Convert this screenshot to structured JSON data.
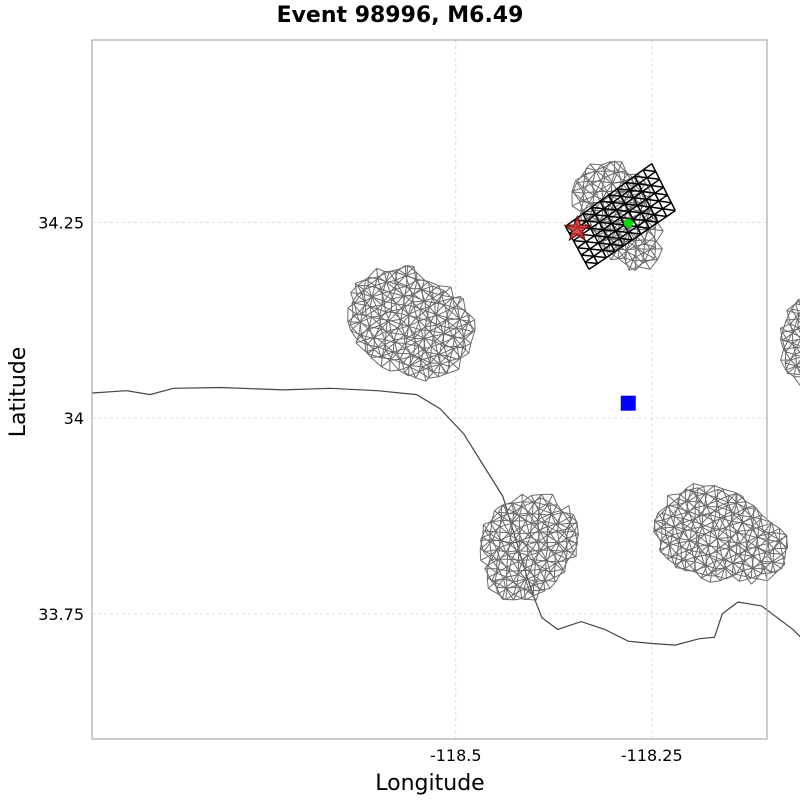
{
  "chart_data": {
    "type": "map",
    "title": "Event 98996, M6.49",
    "xlabel": "Longitude",
    "ylabel": "Latitude",
    "xlim": [
      -118.964,
      -118.103
    ],
    "ylim": [
      33.59,
      34.483
    ],
    "x_ticks": [
      {
        "value": -118.5,
        "label": "-118.5"
      },
      {
        "value": -118.25,
        "label": "-118.25"
      },
      {
        "value": -118.0,
        "label": "-118"
      }
    ],
    "y_ticks": [
      {
        "value": 34.25,
        "label": "34.25"
      },
      {
        "value": 34.0,
        "label": "34"
      },
      {
        "value": 33.75,
        "label": "33.75"
      }
    ],
    "grid": true,
    "coastline": [
      [
        -118.964,
        34.032
      ],
      [
        -118.92,
        34.035
      ],
      [
        -118.89,
        34.03
      ],
      [
        -118.86,
        34.038
      ],
      [
        -118.8,
        34.039
      ],
      [
        -118.72,
        34.036
      ],
      [
        -118.66,
        34.038
      ],
      [
        -118.6,
        34.035
      ],
      [
        -118.55,
        34.03
      ],
      [
        -118.52,
        34.012
      ],
      [
        -118.49,
        33.98
      ],
      [
        -118.465,
        33.94
      ],
      [
        -118.44,
        33.9
      ],
      [
        -118.425,
        33.85
      ],
      [
        -118.41,
        33.8
      ],
      [
        -118.4,
        33.77
      ],
      [
        -118.39,
        33.745
      ],
      [
        -118.37,
        33.73
      ],
      [
        -118.34,
        33.74
      ],
      [
        -118.31,
        33.73
      ],
      [
        -118.28,
        33.715
      ],
      [
        -118.25,
        33.712
      ],
      [
        -118.22,
        33.71
      ],
      [
        -118.19,
        33.718
      ],
      [
        -118.17,
        33.72
      ],
      [
        -118.16,
        33.75
      ],
      [
        -118.14,
        33.765
      ],
      [
        -118.11,
        33.76
      ],
      [
        -118.07,
        33.73
      ],
      [
        -118.04,
        33.7
      ],
      [
        -118.0,
        33.66
      ],
      [
        -117.95,
        33.63
      ],
      [
        -117.91,
        33.605
      ],
      [
        -117.87,
        33.59
      ]
    ],
    "patches": [
      {
        "name": "patch-north",
        "center": [
          -118.28,
          34.24
        ],
        "radius": 0.075
      },
      {
        "name": "patch-west",
        "center": [
          -118.54,
          34.1
        ],
        "radius": 0.1
      },
      {
        "name": "patch-east",
        "center": [
          -118.03,
          34.08
        ],
        "radius": 0.085
      },
      {
        "name": "patch-southwest",
        "center": [
          -118.42,
          33.83
        ],
        "radius": 0.09
      },
      {
        "name": "patch-southeast",
        "center": [
          -118.14,
          33.84
        ],
        "radius": 0.09
      }
    ],
    "rupture_patch": {
      "corners": [
        [
          -118.36,
          34.245
        ],
        [
          -118.25,
          34.325
        ],
        [
          -118.22,
          34.265
        ],
        [
          -118.33,
          34.19
        ]
      ]
    },
    "markers": [
      {
        "name": "epicenter-star",
        "symbol": "star",
        "lon": -118.345,
        "lat": 34.241,
        "color": "#cc3333"
      },
      {
        "name": "centroid-point",
        "symbol": "circle",
        "lon": -118.28,
        "lat": 34.249,
        "color": "#00dd00"
      },
      {
        "name": "site-marker",
        "symbol": "square",
        "lon": -118.28,
        "lat": 34.019,
        "color": "#0000ff"
      }
    ],
    "colors": {
      "mesh": "#6b6b6b",
      "rupture": "#000000",
      "coast": "#444444"
    }
  }
}
